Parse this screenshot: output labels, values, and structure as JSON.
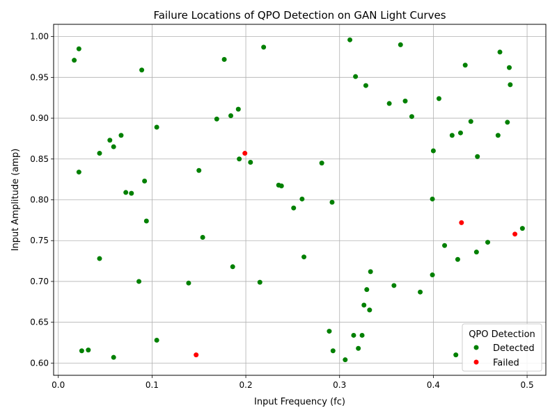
{
  "chart_data": {
    "type": "scatter",
    "title": "Failure Locations of QPO Detection on GAN Light Curves",
    "xlabel": "Input Frequency (fc)",
    "ylabel": "Input Amplitude (amp)",
    "xlim": [
      -0.005,
      0.52
    ],
    "ylim": [
      0.585,
      1.015
    ],
    "xticks": [
      "0.0",
      "0.1",
      "0.2",
      "0.3",
      "0.4",
      "0.5"
    ],
    "yticks": [
      "0.60",
      "0.65",
      "0.70",
      "0.75",
      "0.80",
      "0.85",
      "0.90",
      "0.95",
      "1.00"
    ],
    "grid": true,
    "legend": {
      "title": "QPO Detection",
      "position": "lower-right"
    },
    "series": [
      {
        "name": "Detected",
        "color": "#008000",
        "points": [
          [
            0.017,
            0.971
          ],
          [
            0.022,
            0.985
          ],
          [
            0.022,
            0.834
          ],
          [
            0.025,
            0.615
          ],
          [
            0.032,
            0.616
          ],
          [
            0.044,
            0.857
          ],
          [
            0.044,
            0.728
          ],
          [
            0.055,
            0.873
          ],
          [
            0.059,
            0.865
          ],
          [
            0.059,
            0.607
          ],
          [
            0.067,
            0.879
          ],
          [
            0.072,
            0.809
          ],
          [
            0.078,
            0.808
          ],
          [
            0.086,
            0.7
          ],
          [
            0.089,
            0.959
          ],
          [
            0.092,
            0.823
          ],
          [
            0.094,
            0.774
          ],
          [
            0.105,
            0.889
          ],
          [
            0.105,
            0.628
          ],
          [
            0.139,
            0.698
          ],
          [
            0.15,
            0.836
          ],
          [
            0.154,
            0.754
          ],
          [
            0.169,
            0.899
          ],
          [
            0.177,
            0.972
          ],
          [
            0.184,
            0.903
          ],
          [
            0.186,
            0.718
          ],
          [
            0.192,
            0.911
          ],
          [
            0.193,
            0.85
          ],
          [
            0.205,
            0.846
          ],
          [
            0.215,
            0.699
          ],
          [
            0.219,
            0.987
          ],
          [
            0.235,
            0.818
          ],
          [
            0.238,
            0.817
          ],
          [
            0.251,
            0.79
          ],
          [
            0.26,
            0.801
          ],
          [
            0.262,
            0.73
          ],
          [
            0.281,
            0.845
          ],
          [
            0.289,
            0.639
          ],
          [
            0.292,
            0.797
          ],
          [
            0.293,
            0.615
          ],
          [
            0.306,
            0.604
          ],
          [
            0.311,
            0.996
          ],
          [
            0.315,
            0.634
          ],
          [
            0.317,
            0.951
          ],
          [
            0.32,
            0.618
          ],
          [
            0.324,
            0.634
          ],
          [
            0.326,
            0.671
          ],
          [
            0.328,
            0.94
          ],
          [
            0.329,
            0.69
          ],
          [
            0.332,
            0.665
          ],
          [
            0.333,
            0.712
          ],
          [
            0.353,
            0.918
          ],
          [
            0.358,
            0.695
          ],
          [
            0.365,
            0.99
          ],
          [
            0.37,
            0.921
          ],
          [
            0.377,
            0.902
          ],
          [
            0.386,
            0.687
          ],
          [
            0.399,
            0.801
          ],
          [
            0.399,
            0.708
          ],
          [
            0.4,
            0.86
          ],
          [
            0.406,
            0.924
          ],
          [
            0.412,
            0.744
          ],
          [
            0.42,
            0.879
          ],
          [
            0.424,
            0.61
          ],
          [
            0.426,
            0.727
          ],
          [
            0.429,
            0.882
          ],
          [
            0.434,
            0.965
          ],
          [
            0.44,
            0.896
          ],
          [
            0.446,
            0.736
          ],
          [
            0.447,
            0.853
          ],
          [
            0.458,
            0.748
          ],
          [
            0.469,
            0.879
          ],
          [
            0.471,
            0.981
          ],
          [
            0.479,
            0.895
          ],
          [
            0.481,
            0.962
          ],
          [
            0.482,
            0.941
          ],
          [
            0.495,
            0.765
          ]
        ]
      },
      {
        "name": "Failed",
        "color": "#ff0000",
        "points": [
          [
            0.147,
            0.61
          ],
          [
            0.199,
            0.857
          ],
          [
            0.43,
            0.772
          ],
          [
            0.487,
            0.758
          ]
        ]
      }
    ]
  }
}
